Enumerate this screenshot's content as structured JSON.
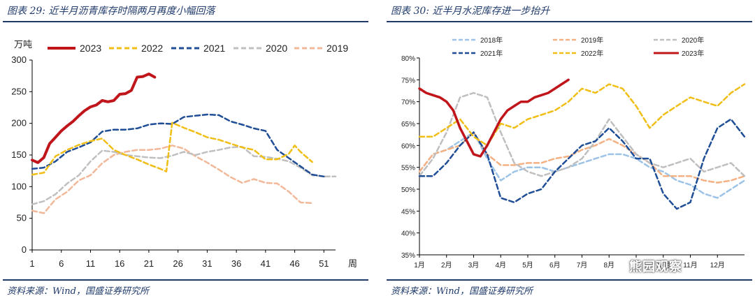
{
  "left": {
    "title": "图表 29:  近半月沥青库存时隔两月再度小幅回落",
    "source": "资料来源：Wind，国盛证券研究所"
  },
  "right": {
    "title": "图表 30:  近半月水泥库存进一步抬升",
    "source": "资料来源：Wind，国盛证券研究所"
  },
  "watermark": "熊园观察",
  "chart_data": [
    {
      "type": "line",
      "ylabel": "万吨",
      "xlabel": "周",
      "xlim": [
        1,
        53
      ],
      "ylim": [
        0,
        300
      ],
      "x_ticks": [
        1,
        6,
        11,
        16,
        21,
        26,
        31,
        36,
        41,
        46,
        51
      ],
      "y_ticks": [
        0,
        50,
        100,
        150,
        200,
        250,
        300
      ],
      "grid": false,
      "legend_position": "top",
      "colors": {
        "2023": "#c0161b",
        "2022": "#f0be14",
        "2021": "#1f4e96",
        "2020": "#c0c0c0",
        "2019": "#f2b89a"
      },
      "series": [
        {
          "name": "2023",
          "style": "solid",
          "x": [
            1,
            2,
            3,
            4,
            5,
            6,
            7,
            8,
            9,
            10,
            11,
            12,
            13,
            14,
            15,
            16,
            17,
            18,
            19,
            20,
            21,
            22
          ],
          "values": [
            142,
            138,
            146,
            168,
            178,
            188,
            196,
            203,
            212,
            220,
            226,
            229,
            236,
            234,
            236,
            246,
            247,
            252,
            273,
            274,
            278,
            273
          ]
        },
        {
          "name": "2022",
          "style": "dashed",
          "x": [
            1,
            3,
            5,
            7,
            9,
            11,
            13,
            15,
            17,
            19,
            21,
            23,
            24,
            25,
            27,
            29,
            31,
            33,
            35,
            37,
            39,
            41,
            43,
            45,
            46,
            47,
            49
          ],
          "values": [
            119,
            122,
            148,
            158,
            166,
            172,
            176,
            158,
            150,
            143,
            135,
            128,
            124,
            201,
            193,
            186,
            178,
            174,
            168,
            162,
            158,
            143,
            143,
            152,
            165,
            155,
            139
          ]
        },
        {
          "name": "2021",
          "style": "dashed",
          "x": [
            1,
            3,
            5,
            7,
            9,
            11,
            13,
            15,
            17,
            19,
            21,
            23,
            25,
            27,
            29,
            31,
            33,
            35,
            37,
            39,
            41,
            43,
            45,
            47,
            49,
            51
          ],
          "values": [
            128,
            130,
            140,
            155,
            162,
            170,
            187,
            190,
            190,
            192,
            198,
            200,
            199,
            210,
            212,
            214,
            213,
            203,
            198,
            192,
            188,
            158,
            145,
            132,
            119,
            116
          ]
        },
        {
          "name": "2020",
          "style": "dashed",
          "x": [
            1,
            3,
            5,
            7,
            9,
            11,
            13,
            15,
            17,
            19,
            21,
            23,
            25,
            27,
            29,
            31,
            33,
            35,
            37,
            39,
            41,
            43,
            45,
            47,
            49,
            51,
            53
          ],
          "values": [
            72,
            77,
            88,
            105,
            118,
            140,
            157,
            155,
            150,
            148,
            146,
            145,
            149,
            155,
            150,
            155,
            158,
            162,
            163,
            148,
            147,
            144,
            140,
            130,
            118,
            116,
            116
          ]
        },
        {
          "name": "2019",
          "style": "dashed",
          "x": [
            1,
            3,
            5,
            7,
            9,
            11,
            13,
            15,
            17,
            19,
            21,
            23,
            25,
            27,
            29,
            31,
            33,
            35,
            37,
            39,
            41,
            43,
            45,
            47,
            49
          ],
          "values": [
            62,
            58,
            80,
            92,
            110,
            118,
            137,
            150,
            155,
            158,
            158,
            160,
            165,
            160,
            148,
            138,
            127,
            115,
            106,
            112,
            106,
            105,
            92,
            75,
            74
          ]
        }
      ]
    },
    {
      "type": "line",
      "xlim": [
        1,
        13
      ],
      "ylim": [
        35,
        80
      ],
      "x_ticks": [
        "1月",
        "2月",
        "3月",
        "4月",
        "5月",
        "6月",
        "7月",
        "8月",
        "9月",
        "10月",
        "11月",
        "12月"
      ],
      "y_ticks": [
        "35%",
        "40%",
        "45%",
        "50%",
        "55%",
        "60%",
        "65%",
        "70%",
        "75%",
        "80%"
      ],
      "grid": false,
      "legend_position": "top",
      "colors": {
        "2018年": "#9dc3e6",
        "2019年": "#f4b183",
        "2020年": "#bfbfbf",
        "2021年": "#1f4e96",
        "2022年": "#f0be14",
        "2023年": "#c0161b"
      },
      "series": [
        {
          "name": "2018年",
          "style": "dashed",
          "x": [
            1,
            1.5,
            2,
            2.5,
            3,
            3.5,
            4,
            4.5,
            5,
            5.5,
            6,
            6.5,
            7,
            7.5,
            8,
            8.5,
            9,
            9.5,
            10,
            10.5,
            11,
            11.5,
            12,
            12.5,
            13
          ],
          "values": [
            54,
            58,
            59,
            61,
            63,
            57,
            52,
            54,
            55,
            55,
            54,
            55,
            56,
            57,
            58,
            58,
            57,
            55,
            54,
            52,
            51,
            49,
            48,
            50,
            52
          ]
        },
        {
          "name": "2019年",
          "style": "dashed",
          "x": [
            1,
            1.5,
            2,
            2.5,
            3,
            3.5,
            4,
            4.5,
            5,
            5.5,
            6,
            6.5,
            7,
            7.5,
            8,
            8.5,
            9,
            9.5,
            10,
            10.5,
            11,
            11.5,
            12,
            12.5,
            13
          ],
          "values": [
            54,
            58,
            59,
            60,
            63,
            58,
            55.5,
            55.5,
            56,
            56,
            57,
            57.5,
            59,
            60,
            61.5,
            60,
            58,
            56,
            53,
            53,
            53,
            52,
            51.5,
            52,
            53
          ]
        },
        {
          "name": "2020年",
          "style": "dashed",
          "x": [
            1,
            1.5,
            2,
            2.5,
            3,
            3.5,
            4,
            4.5,
            5,
            5.5,
            6,
            6.5,
            7,
            7.5,
            8,
            8.5,
            9,
            9.5,
            10,
            10.5,
            11,
            11.5,
            12,
            12.5,
            13
          ],
          "values": [
            53,
            57,
            63,
            71,
            72,
            71,
            63,
            56,
            54,
            53,
            54,
            55,
            57,
            61,
            66,
            62,
            58,
            56,
            55,
            56,
            57,
            54,
            55,
            56,
            53
          ]
        },
        {
          "name": "2021年",
          "style": "dashed",
          "x": [
            1,
            1.5,
            2,
            2.5,
            3,
            3.5,
            4,
            4.5,
            5,
            5.5,
            6,
            6.5,
            7,
            7.5,
            8,
            8.5,
            9,
            9.5,
            10,
            10.5,
            11,
            11.5,
            12,
            12.5,
            13
          ],
          "values": [
            53,
            53,
            56,
            60,
            63,
            58,
            48,
            47,
            49,
            50,
            54,
            57,
            60,
            61,
            64,
            61,
            57,
            57,
            49,
            45.5,
            47,
            57,
            64,
            66,
            62
          ]
        },
        {
          "name": "2022年",
          "style": "dashed",
          "x": [
            1,
            1.5,
            2,
            2.5,
            3,
            3.5,
            4,
            4.5,
            5,
            5.5,
            6,
            6.5,
            7,
            7.5,
            8,
            8.5,
            9,
            9.5,
            10,
            10.5,
            11,
            11.5,
            12,
            12.5,
            13
          ],
          "values": [
            62,
            62,
            64,
            66,
            62,
            60,
            65,
            64,
            66,
            67,
            68,
            70,
            73,
            72,
            74,
            73,
            69,
            64,
            67,
            69,
            71,
            70,
            69,
            72,
            74
          ]
        },
        {
          "name": "2023年",
          "style": "solid",
          "x": [
            1,
            1.25,
            1.5,
            1.75,
            2,
            2.25,
            2.5,
            2.75,
            3,
            3.25,
            3.5,
            3.75,
            4,
            4.25,
            4.5,
            4.75,
            5,
            5.25,
            5.5,
            5.75,
            6,
            6.25,
            6.5
          ],
          "values": [
            73,
            72,
            71.5,
            71,
            70,
            68,
            64,
            61,
            58,
            57.5,
            60,
            63,
            66,
            68,
            69,
            70,
            70,
            71,
            71.5,
            72,
            73,
            74,
            75
          ]
        }
      ]
    }
  ]
}
